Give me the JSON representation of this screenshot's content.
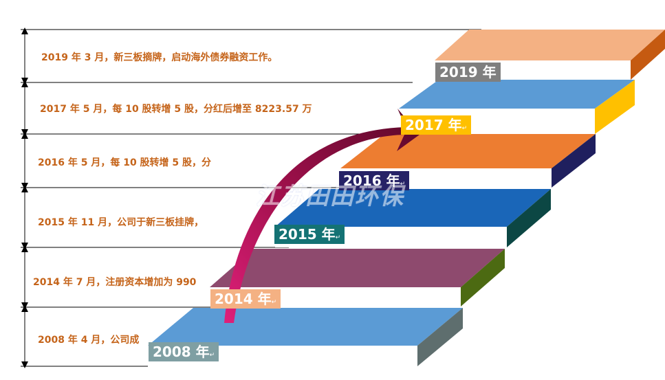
{
  "colors": {
    "text": "#c5641a",
    "rule": "#000000",
    "arrow_dark": "#6e0b2e",
    "arrow_light": "#c1186a"
  },
  "milestones": [
    {
      "text": "2019 年 3 月，新三板摘牌，启动海外债券融资工作。"
    },
    {
      "text": "2017 年 5 月，每 10 股转增 5 股，分红后增至 8223.57 万"
    },
    {
      "text": "2016 年 5 月，每 10 股转增 5 股，分"
    },
    {
      "text": "2015 年 11 月，公司于新三板挂牌，"
    },
    {
      "text": "2014 年 7 月，注册资本增加为 990"
    },
    {
      "text": "2008 年 4 月，公司成"
    }
  ],
  "steps": [
    {
      "year": "2008 年",
      "mark": "↵",
      "top": "#5b9bd5",
      "side": "#5e6e6e",
      "label_bg": "#7f9fa3"
    },
    {
      "year": "2014 年",
      "mark": "↵",
      "top": "#8e4a6e",
      "side": "#4c6a12",
      "label_bg": "#f4b183"
    },
    {
      "year": "2015 年",
      "mark": "↵",
      "top": "#1a66b8",
      "side": "#0c4744",
      "label_bg": "#147274"
    },
    {
      "year": "2016 年",
      "mark": "↵",
      "top": "#ed7d31",
      "side": "#1f1f5e",
      "label_bg": "#262266"
    },
    {
      "year": "2017 年",
      "mark": "↵",
      "top": "#5b9bd5",
      "side": "#ffc000",
      "label_bg": "#ffc000"
    },
    {
      "year": "2019 年",
      "mark": "",
      "top": "#f4b183",
      "side": "#c55a11",
      "label_bg": "#7f7f7f"
    }
  ],
  "watermark": "江苏田田环保"
}
